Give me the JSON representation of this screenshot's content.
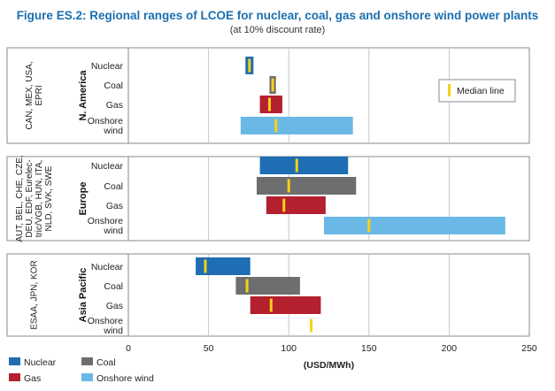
{
  "chart_data": {
    "type": "bar",
    "subtype": "range",
    "title": "Figure ES.2: Regional ranges of LCOE for nuclear, coal, gas and onshore wind power plants",
    "subtitle": "(at 10% discount rate)",
    "xlabel": "(USD/MWh)",
    "xlim": [
      0,
      250
    ],
    "xticks": [
      "0",
      "50",
      "100",
      "150",
      "200",
      "250"
    ],
    "grid": true,
    "colors": {
      "Nuclear": "#1f6db3",
      "Coal": "#6d6e70",
      "Gas": "#b4202e",
      "Onshore wind": "#6ab8e6",
      "Median": "#f7d117"
    },
    "median_legend": "Median line",
    "legend": [
      {
        "label": "Nuclear",
        "key": "Nuclear"
      },
      {
        "label": "Coal",
        "key": "Coal"
      },
      {
        "label": "Gas",
        "key": "Gas"
      },
      {
        "label": "Onshore wind",
        "key": "Onshore wind"
      }
    ],
    "panels": [
      {
        "region": "N. America",
        "countries": [
          "CAN, MEX, USA,",
          "EPRI"
        ],
        "rows": [
          {
            "tech": "Nuclear",
            "label": [
              "Nuclear"
            ],
            "min": 73,
            "max": 78,
            "median": 75.5
          },
          {
            "tech": "Coal",
            "label": [
              "Coal"
            ],
            "min": 88,
            "max": 92,
            "median": 90
          },
          {
            "tech": "Gas",
            "label": [
              "Gas"
            ],
            "min": 82,
            "max": 96,
            "median": 88
          },
          {
            "tech": "Onshore wind",
            "label": [
              "Onshore",
              "wind"
            ],
            "min": 70,
            "max": 140,
            "median": 92
          }
        ]
      },
      {
        "region": "Europe",
        "countries": [
          "AUT, BEL, CHE, CZE,",
          "DEU, EDF, Eurelec-",
          "tric/VGB, HUN, ITA,",
          "NLD, SVK, SWE"
        ],
        "rows": [
          {
            "tech": "Nuclear",
            "label": [
              "Nuclear"
            ],
            "min": 82,
            "max": 137,
            "median": 105
          },
          {
            "tech": "Coal",
            "label": [
              "Coal"
            ],
            "min": 80,
            "max": 142,
            "median": 100
          },
          {
            "tech": "Gas",
            "label": [
              "Gas"
            ],
            "min": 86,
            "max": 123,
            "median": 97
          },
          {
            "tech": "Onshore wind",
            "label": [
              "Onshore",
              "wind"
            ],
            "min": 122,
            "max": 235,
            "median": 150
          }
        ]
      },
      {
        "region": "Asia Pacific",
        "countries": [
          "ESAA, JPN, KOR"
        ],
        "rows": [
          {
            "tech": "Nuclear",
            "label": [
              "Nuclear"
            ],
            "min": 42,
            "max": 76,
            "median": 48
          },
          {
            "tech": "Coal",
            "label": [
              "Coal"
            ],
            "min": 67,
            "max": 107,
            "median": 74
          },
          {
            "tech": "Gas",
            "label": [
              "Gas"
            ],
            "min": 76,
            "max": 120,
            "median": 89
          },
          {
            "tech": "Onshore wind",
            "label": [
              "Onshore",
              "wind"
            ],
            "min": null,
            "max": null,
            "median": 114
          }
        ]
      }
    ]
  }
}
